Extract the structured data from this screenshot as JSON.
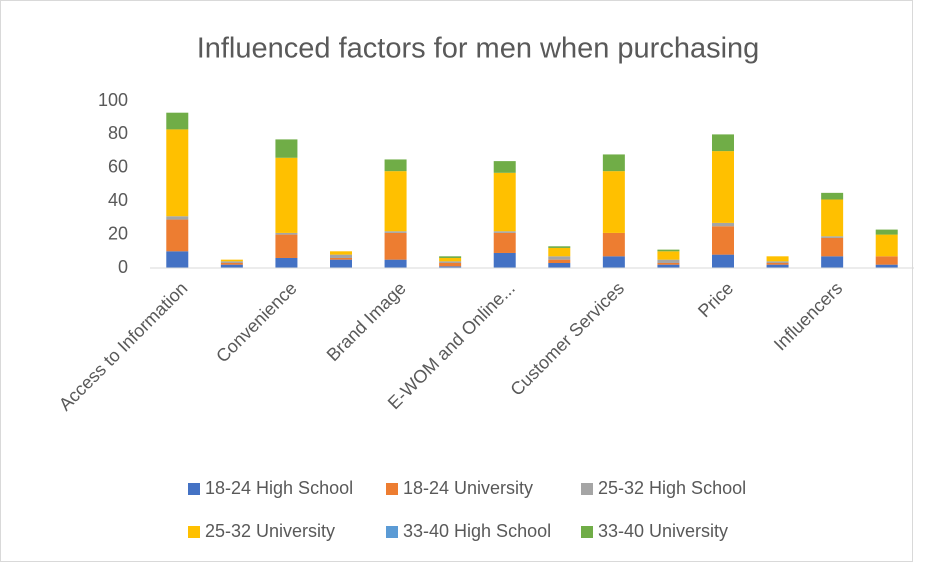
{
  "chart_data": {
    "type": "stacked_bar",
    "title": "Influenced factors for men when purchasing",
    "categories": [
      "Access to Information",
      null,
      "Convenience",
      null,
      "Brand Image",
      null,
      "E-WOM and Online...",
      null,
      "Customer Services",
      null,
      "Price",
      null,
      "Influencers",
      null
    ],
    "series": [
      {
        "name": "18-24 High School",
        "color": "#4472c4",
        "values": [
          10,
          2,
          6,
          5,
          5,
          1,
          9,
          3,
          7,
          2,
          8,
          2,
          7,
          2
        ]
      },
      {
        "name": "18-24 University",
        "color": "#ed7d31",
        "values": [
          19,
          1,
          14,
          1,
          16,
          2,
          12,
          2,
          14,
          1,
          17,
          1,
          11,
          5
        ]
      },
      {
        "name": "25-32 High School",
        "color": "#a5a5a5",
        "values": [
          2,
          1,
          1,
          2,
          1,
          1,
          1,
          2,
          0,
          2,
          2,
          1,
          1,
          0
        ]
      },
      {
        "name": "25-32 University",
        "color": "#ffc000",
        "values": [
          52,
          1,
          45,
          2,
          36,
          2,
          35,
          5,
          37,
          5,
          43,
          3,
          22,
          13
        ]
      },
      {
        "name": "33-40 High School",
        "color": "#5b9bd5",
        "values": [
          0,
          0,
          0,
          0,
          0,
          0,
          0,
          0,
          0,
          0,
          0,
          0,
          0,
          0
        ]
      },
      {
        "name": "33-40 University",
        "color": "#70ad47",
        "values": [
          10,
          0,
          11,
          0,
          7,
          1,
          7,
          1,
          10,
          1,
          10,
          0,
          4,
          3
        ]
      }
    ],
    "ylim": [
      0,
      100
    ],
    "yticks": [
      0,
      20,
      40,
      60,
      80,
      100
    ],
    "grid": false,
    "legend": "bottom"
  }
}
